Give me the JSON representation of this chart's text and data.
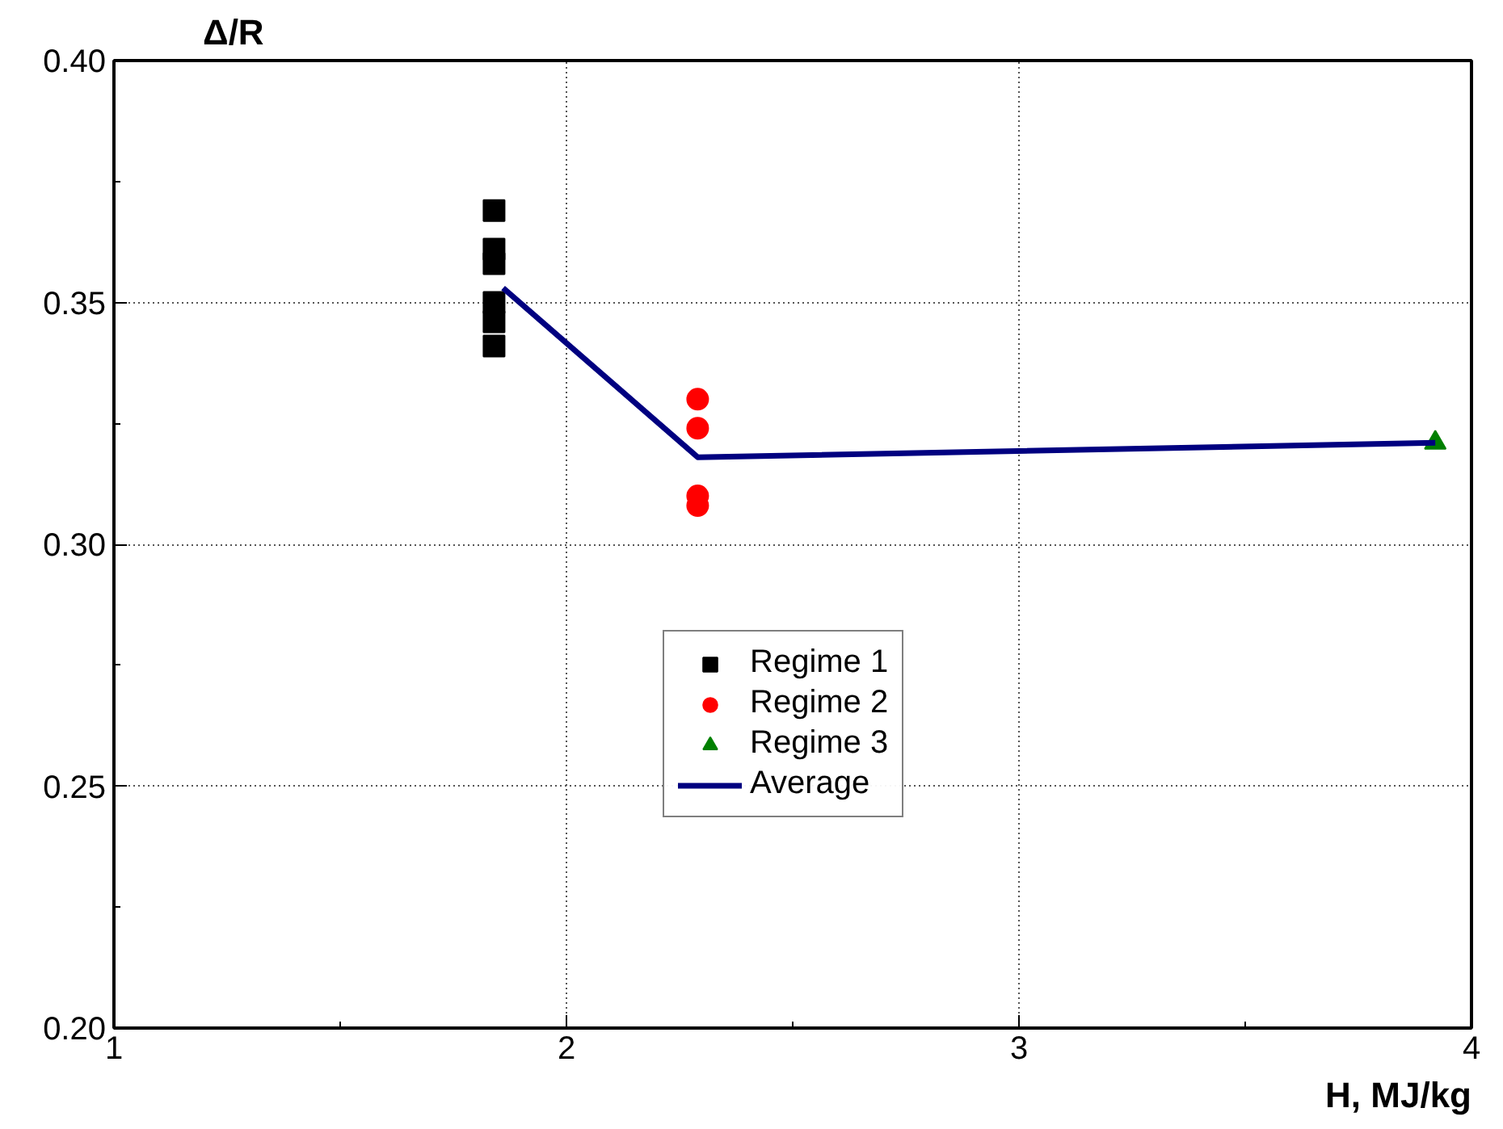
{
  "chart_data": {
    "type": "scatter",
    "xlabel": "H, MJ/kg",
    "ylabel": "Δ/R",
    "xlim": [
      1,
      4
    ],
    "ylim": [
      0.2,
      0.4
    ],
    "xticks": [
      1,
      2,
      3,
      4
    ],
    "yticks": [
      {
        "value": 0.2,
        "label": "0.20"
      },
      {
        "value": 0.25,
        "label": "0.25"
      },
      {
        "value": 0.3,
        "label": "0.30"
      },
      {
        "value": 0.35,
        "label": "0.35"
      },
      {
        "value": 0.4,
        "label": "0.40"
      }
    ],
    "grid": true,
    "legend": "center",
    "series": [
      {
        "name": "Regime 1",
        "color": "#000000",
        "marker": "square",
        "x": [
          1.84,
          1.84,
          1.84,
          1.84,
          1.84,
          1.84
        ],
        "values": [
          0.369,
          0.361,
          0.358,
          0.35,
          0.346,
          0.341
        ]
      },
      {
        "name": "Regime 2",
        "color": "#ff0000",
        "marker": "circle",
        "x": [
          2.29,
          2.29,
          2.29,
          2.29
        ],
        "values": [
          0.33,
          0.324,
          0.31,
          0.308
        ]
      },
      {
        "name": "Regime 3",
        "color": "#008000",
        "marker": "triangle",
        "x": [
          3.92
        ],
        "values": [
          0.321
        ]
      },
      {
        "name": "Average",
        "type": "line",
        "color": "#000080",
        "marker": "none",
        "x": [
          1.86,
          2.29,
          3.92
        ],
        "values": [
          0.353,
          0.318,
          0.321
        ]
      }
    ]
  }
}
